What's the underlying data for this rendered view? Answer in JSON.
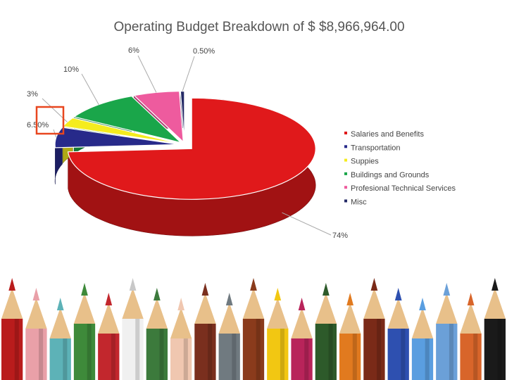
{
  "chart_data": {
    "type": "pie",
    "title": "Operating Budget Breakdown of $ $8,966,964.00",
    "categories": [
      "Salaries and Benefits",
      "Transportation",
      "Suppies",
      "Buildings and Grounds",
      "Profesional Technical Services",
      "Misc"
    ],
    "values": [
      74,
      6.5,
      3,
      10,
      6,
      0.5
    ],
    "value_labels": [
      "74%",
      "6.50%",
      "3%",
      "10%",
      "6%",
      "0.50%"
    ],
    "colors": [
      "#e0191b",
      "#272a8a",
      "#f5ec1e",
      "#1aa64a",
      "#ee5b9e",
      "#242a66"
    ],
    "legend_position": "right",
    "style": "3d-exploded"
  },
  "highlight": {
    "target_label": "6.50%",
    "color": "#e8461f"
  },
  "decoration": {
    "pencil_colors": [
      "#b91c1c",
      "#e9a0a8",
      "#5db2b7",
      "#3e8a3a",
      "#c2272d",
      "#f0f0f0",
      "#3c7a3c",
      "#f0c7b0",
      "#7a2f1e",
      "#707a80",
      "#8a3b1c",
      "#f2c712",
      "#b8245a",
      "#2d5a2a",
      "#e17a1f",
      "#7a2a18",
      "#2e50b0",
      "#5a9ee0",
      "#6ba0d8",
      "#d8652a",
      "#1a1a1a"
    ]
  }
}
